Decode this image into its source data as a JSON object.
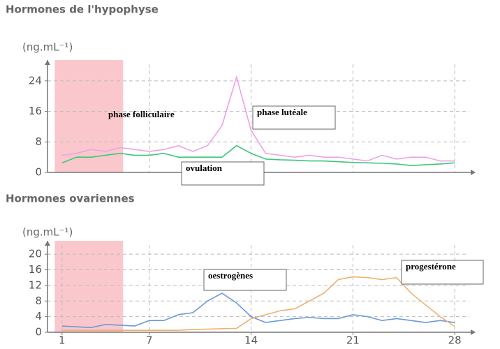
{
  "chart_data": [
    {
      "type": "line",
      "title": "Hormones de l'hypophyse",
      "y_label": "(ng.mL⁻¹)",
      "x": [
        1,
        2,
        3,
        4,
        5,
        6,
        7,
        8,
        9,
        10,
        11,
        12,
        13,
        14,
        15,
        16,
        17,
        18,
        19,
        20,
        21,
        22,
        23,
        24,
        25,
        26,
        27,
        28
      ],
      "series": [
        {
          "color": "#f0a0e8",
          "values": [
            4.5,
            5,
            6,
            5.5,
            6.5,
            6,
            5.5,
            6,
            7,
            5.5,
            7,
            12.3,
            25,
            11,
            5,
            4.5,
            4,
            4.5,
            4,
            4,
            3.5,
            3,
            4.5,
            3.5,
            4,
            4,
            3,
            3
          ]
        },
        {
          "color": "#3cc878",
          "values": [
            2.5,
            4,
            4,
            4.5,
            5,
            4.5,
            4.5,
            5,
            4,
            4,
            4,
            4,
            7,
            5,
            3.5,
            3.3,
            3.2,
            3,
            3,
            2.8,
            2.6,
            2.5,
            2.4,
            2.2,
            1.8,
            2,
            2.2,
            2.5
          ]
        }
      ],
      "xlim": [
        0,
        29
      ],
      "ylim": [
        0,
        28
      ],
      "yticks": [
        0,
        8,
        16,
        24
      ],
      "vgrid": [
        7,
        14,
        21,
        28
      ],
      "shaded_x": [
        0.5,
        5.2
      ],
      "shade_color": "#fac8cc",
      "annotations": [
        "phase folliculaire",
        "phase lutéale",
        "ovulation"
      ]
    },
    {
      "type": "line",
      "title": "Hormones ovariennes",
      "y_label": "(ng.mL⁻¹)",
      "x": [
        1,
        2,
        3,
        4,
        5,
        6,
        7,
        8,
        9,
        10,
        11,
        12,
        13,
        14,
        15,
        16,
        17,
        18,
        19,
        20,
        21,
        22,
        23,
        24,
        25,
        26,
        27,
        28
      ],
      "series": [
        {
          "color": "#6a9ad8",
          "values": [
            1.6,
            1.4,
            1.2,
            2,
            1.8,
            1.6,
            3,
            3,
            4.5,
            5,
            8,
            10,
            7.5,
            4,
            2.5,
            3,
            3.5,
            3.8,
            3.5,
            3.5,
            4.5,
            4,
            3,
            3.5,
            3,
            2.5,
            3,
            2.5
          ]
        },
        {
          "color": "#f0b070",
          "values": [
            0.5,
            0.5,
            0.5,
            0.5,
            0.5,
            0.5,
            0.5,
            0.5,
            0.5,
            0.7,
            0.8,
            0.9,
            1,
            3.5,
            4.5,
            5.5,
            6,
            8,
            10,
            13.5,
            14.2,
            14,
            13.5,
            14,
            10,
            7,
            4,
            1.5
          ]
        }
      ],
      "xlim": [
        0,
        29
      ],
      "ylim": [
        0,
        22
      ],
      "yticks": [
        0,
        4,
        8,
        12,
        16,
        20
      ],
      "xticks": [
        1,
        7,
        14,
        21,
        28
      ],
      "shaded_x": [
        0.5,
        5.2
      ],
      "shade_color": "#fac8cc",
      "annotations": [
        "oestrogènes",
        "progestérone"
      ]
    }
  ]
}
